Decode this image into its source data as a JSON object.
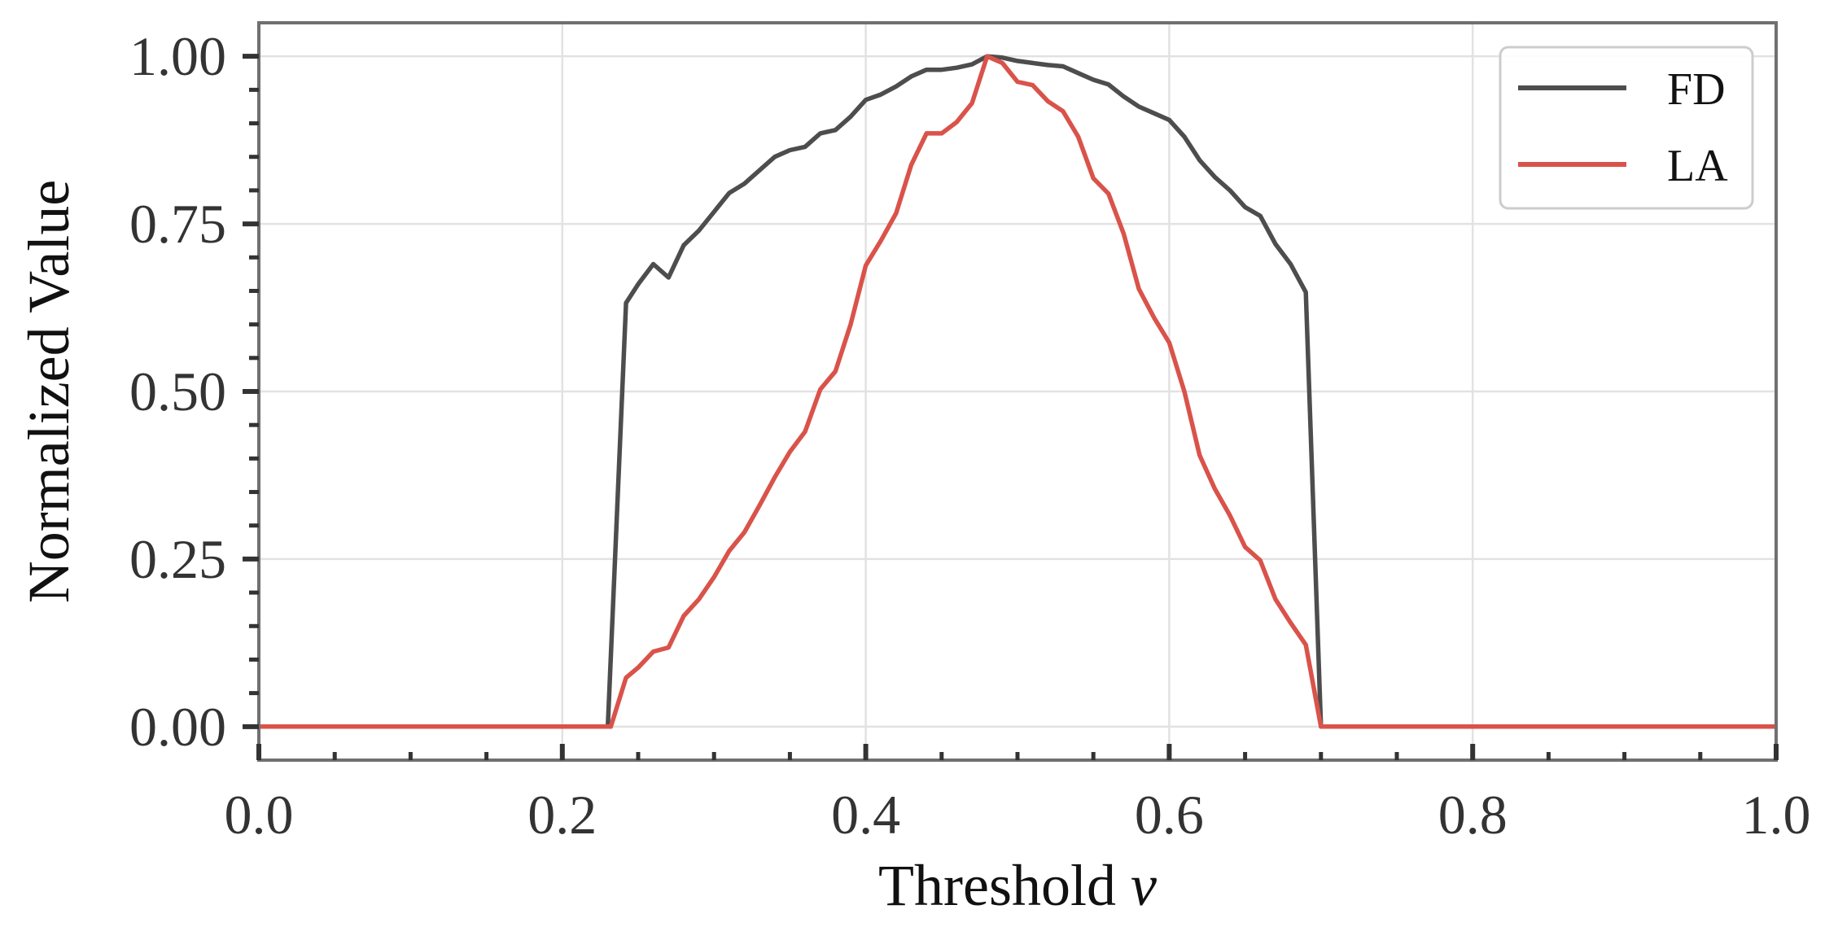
{
  "chart_data": {
    "type": "line",
    "xlabel_text": "Threshold ",
    "xlabel_var": "v",
    "ylabel": "Normalized Value",
    "xlim": [
      0.0,
      1.0
    ],
    "ylim": [
      -0.05,
      1.05
    ],
    "x_ticks": [
      "0.0",
      "0.2",
      "0.4",
      "0.6",
      "0.8",
      "1.0"
    ],
    "y_ticks": [
      "0.00",
      "0.25",
      "0.50",
      "0.75",
      "1.00"
    ],
    "grid": true,
    "legend_position": "top-right",
    "series": [
      {
        "name": "FD",
        "color": "#4d4d4d",
        "points": [
          [
            0.0,
            0.0
          ],
          [
            0.05,
            0.0
          ],
          [
            0.1,
            0.0
          ],
          [
            0.15,
            0.0
          ],
          [
            0.2,
            0.0
          ],
          [
            0.23,
            0.0
          ],
          [
            0.242,
            0.632
          ],
          [
            0.25,
            0.66
          ],
          [
            0.26,
            0.69
          ],
          [
            0.27,
            0.67
          ],
          [
            0.28,
            0.718
          ],
          [
            0.29,
            0.74
          ],
          [
            0.3,
            0.768
          ],
          [
            0.31,
            0.796
          ],
          [
            0.32,
            0.81
          ],
          [
            0.33,
            0.83
          ],
          [
            0.34,
            0.85
          ],
          [
            0.35,
            0.86
          ],
          [
            0.36,
            0.865
          ],
          [
            0.37,
            0.885
          ],
          [
            0.38,
            0.89
          ],
          [
            0.39,
            0.91
          ],
          [
            0.4,
            0.935
          ],
          [
            0.41,
            0.943
          ],
          [
            0.42,
            0.955
          ],
          [
            0.43,
            0.97
          ],
          [
            0.44,
            0.98
          ],
          [
            0.45,
            0.98
          ],
          [
            0.46,
            0.983
          ],
          [
            0.47,
            0.988
          ],
          [
            0.48,
            1.0
          ],
          [
            0.49,
            0.998
          ],
          [
            0.5,
            0.993
          ],
          [
            0.51,
            0.99
          ],
          [
            0.52,
            0.987
          ],
          [
            0.53,
            0.985
          ],
          [
            0.54,
            0.975
          ],
          [
            0.55,
            0.965
          ],
          [
            0.56,
            0.958
          ],
          [
            0.57,
            0.94
          ],
          [
            0.58,
            0.925
          ],
          [
            0.59,
            0.915
          ],
          [
            0.6,
            0.905
          ],
          [
            0.61,
            0.88
          ],
          [
            0.62,
            0.845
          ],
          [
            0.63,
            0.82
          ],
          [
            0.64,
            0.8
          ],
          [
            0.65,
            0.775
          ],
          [
            0.66,
            0.762
          ],
          [
            0.67,
            0.72
          ],
          [
            0.68,
            0.69
          ],
          [
            0.69,
            0.648
          ],
          [
            0.7,
            0.0
          ],
          [
            0.75,
            0.0
          ],
          [
            0.8,
            0.0
          ],
          [
            0.85,
            0.0
          ],
          [
            0.9,
            0.0
          ],
          [
            0.95,
            0.0
          ],
          [
            1.0,
            0.0
          ]
        ]
      },
      {
        "name": "LA",
        "color": "#d9534a",
        "points": [
          [
            0.0,
            0.0
          ],
          [
            0.05,
            0.0
          ],
          [
            0.1,
            0.0
          ],
          [
            0.15,
            0.0
          ],
          [
            0.2,
            0.0
          ],
          [
            0.232,
            0.0
          ],
          [
            0.242,
            0.073
          ],
          [
            0.25,
            0.088
          ],
          [
            0.26,
            0.112
          ],
          [
            0.27,
            0.118
          ],
          [
            0.28,
            0.165
          ],
          [
            0.29,
            0.19
          ],
          [
            0.3,
            0.223
          ],
          [
            0.31,
            0.262
          ],
          [
            0.32,
            0.29
          ],
          [
            0.33,
            0.33
          ],
          [
            0.34,
            0.372
          ],
          [
            0.35,
            0.41
          ],
          [
            0.36,
            0.44
          ],
          [
            0.37,
            0.503
          ],
          [
            0.38,
            0.53
          ],
          [
            0.39,
            0.6
          ],
          [
            0.4,
            0.688
          ],
          [
            0.41,
            0.725
          ],
          [
            0.42,
            0.766
          ],
          [
            0.43,
            0.838
          ],
          [
            0.44,
            0.885
          ],
          [
            0.45,
            0.885
          ],
          [
            0.46,
            0.902
          ],
          [
            0.47,
            0.93
          ],
          [
            0.48,
            1.0
          ],
          [
            0.49,
            0.99
          ],
          [
            0.5,
            0.962
          ],
          [
            0.51,
            0.957
          ],
          [
            0.52,
            0.933
          ],
          [
            0.53,
            0.918
          ],
          [
            0.54,
            0.88
          ],
          [
            0.55,
            0.818
          ],
          [
            0.56,
            0.795
          ],
          [
            0.57,
            0.735
          ],
          [
            0.58,
            0.653
          ],
          [
            0.59,
            0.61
          ],
          [
            0.6,
            0.573
          ],
          [
            0.61,
            0.5
          ],
          [
            0.62,
            0.405
          ],
          [
            0.63,
            0.355
          ],
          [
            0.64,
            0.315
          ],
          [
            0.65,
            0.268
          ],
          [
            0.66,
            0.248
          ],
          [
            0.67,
            0.19
          ],
          [
            0.68,
            0.155
          ],
          [
            0.69,
            0.122
          ],
          [
            0.7,
            0.0
          ],
          [
            0.75,
            0.0
          ],
          [
            0.8,
            0.0
          ],
          [
            0.85,
            0.0
          ],
          [
            0.9,
            0.0
          ],
          [
            0.95,
            0.0
          ],
          [
            1.0,
            0.0
          ]
        ]
      }
    ]
  }
}
